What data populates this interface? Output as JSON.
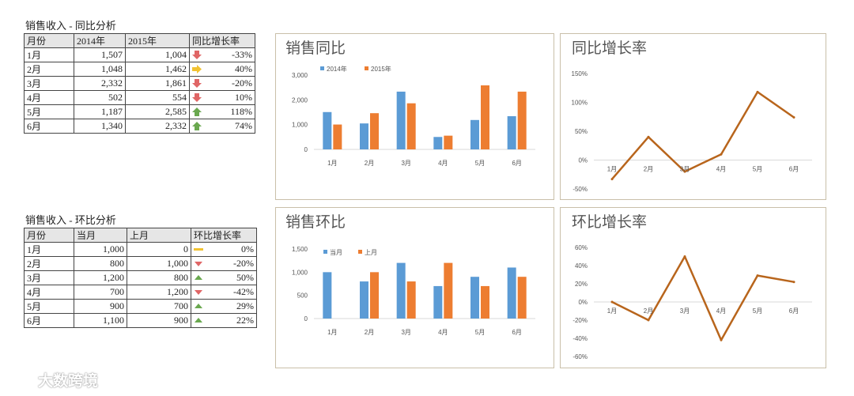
{
  "table1": {
    "title": "销售收入 - 同比分析",
    "headers": [
      "月份",
      "2014年",
      "2015年",
      "同比增长率"
    ],
    "rows": [
      {
        "month": "1月",
        "a": "1,507",
        "b": "1,004",
        "pct": "-33%",
        "icon": "arrow-down-red"
      },
      {
        "month": "2月",
        "a": "1,048",
        "b": "1,462",
        "pct": "40%",
        "icon": "arrow-right-yellow"
      },
      {
        "month": "3月",
        "a": "2,332",
        "b": "1,861",
        "pct": "-20%",
        "icon": "arrow-down-red"
      },
      {
        "month": "4月",
        "a": "502",
        "b": "554",
        "pct": "10%",
        "icon": "arrow-down-red"
      },
      {
        "month": "5月",
        "a": "1,187",
        "b": "2,585",
        "pct": "118%",
        "icon": "arrow-up-green"
      },
      {
        "month": "6月",
        "a": "1,340",
        "b": "2,332",
        "pct": "74%",
        "icon": "arrow-up-green"
      }
    ]
  },
  "table2": {
    "title": "销售收入 - 环比分析",
    "headers": [
      "月份",
      "当月",
      "上月",
      "环比增长率"
    ],
    "rows": [
      {
        "month": "1月",
        "a": "1,000",
        "b": "0",
        "pct": "0%",
        "icon": "dash-yellow"
      },
      {
        "month": "2月",
        "a": "800",
        "b": "1,000",
        "pct": "-20%",
        "icon": "triangle-down-red"
      },
      {
        "month": "3月",
        "a": "1,200",
        "b": "800",
        "pct": "50%",
        "icon": "triangle-up-green"
      },
      {
        "month": "4月",
        "a": "700",
        "b": "1,200",
        "pct": "-42%",
        "icon": "triangle-down-red"
      },
      {
        "month": "5月",
        "a": "900",
        "b": "700",
        "pct": "29%",
        "icon": "triangle-up-green"
      },
      {
        "month": "6月",
        "a": "1,100",
        "b": "900",
        "pct": "22%",
        "icon": "triangle-up-green"
      }
    ]
  },
  "colors": {
    "blue": "#5b9bd5",
    "orange": "#ed7d31",
    "line": "#b8651c",
    "red": "#e06666",
    "green": "#6aa84f",
    "yellow": "#f1c232"
  },
  "chart_data": [
    {
      "type": "bar",
      "title": "销售同比",
      "categories": [
        "1月",
        "2月",
        "3月",
        "4月",
        "5月",
        "6月"
      ],
      "series": [
        {
          "name": "2014年",
          "values": [
            1507,
            1048,
            2332,
            502,
            1187,
            1340
          ]
        },
        {
          "name": "2015年",
          "values": [
            1004,
            1462,
            1861,
            554,
            2585,
            2332
          ]
        }
      ],
      "ylim": [
        0,
        3000
      ],
      "yticks": [
        "0",
        "1,000",
        "2,000",
        "3,000"
      ],
      "legend": "top-left"
    },
    {
      "type": "line",
      "title": "同比增长率",
      "categories": [
        "1月",
        "2月",
        "3月",
        "4月",
        "5月",
        "6月"
      ],
      "values": [
        -33,
        40,
        -20,
        10,
        118,
        74
      ],
      "ylim": [
        -50,
        150
      ],
      "yticks": [
        "-50%",
        "0%",
        "50%",
        "100%",
        "150%"
      ]
    },
    {
      "type": "bar",
      "title": "销售环比",
      "categories": [
        "1月",
        "2月",
        "3月",
        "4月",
        "5月",
        "6月"
      ],
      "series": [
        {
          "name": "当月",
          "values": [
            1000,
            800,
            1200,
            700,
            900,
            1100
          ]
        },
        {
          "name": "上月",
          "values": [
            0,
            1000,
            800,
            1200,
            700,
            900
          ]
        }
      ],
      "ylim": [
        0,
        1500
      ],
      "yticks": [
        "0",
        "500",
        "1,000",
        "1,500"
      ],
      "legend": "top-left"
    },
    {
      "type": "line",
      "title": "环比增长率",
      "categories": [
        "1月",
        "2月",
        "3月",
        "4月",
        "5月",
        "6月"
      ],
      "values": [
        0,
        -20,
        50,
        -42,
        29,
        22
      ],
      "ylim": [
        -60,
        60
      ],
      "yticks": [
        "-60%",
        "-40%",
        "-20%",
        "0%",
        "20%",
        "40%",
        "60%"
      ]
    }
  ],
  "watermark": {
    "text": "大数跨境"
  }
}
